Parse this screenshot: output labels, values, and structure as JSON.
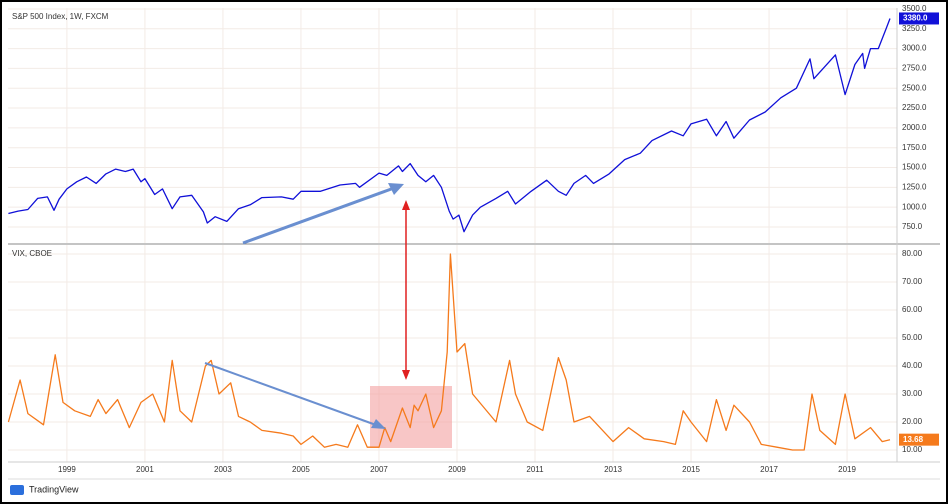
{
  "chart_data": [
    {
      "type": "line",
      "title": "S&P 500 Index, 1W, FXCM",
      "color": "#1010d8",
      "x": [
        1997.5,
        1997.75,
        1998.0,
        1998.25,
        1998.5,
        1998.67,
        1998.8,
        1999.0,
        1999.25,
        1999.5,
        1999.75,
        2000.0,
        2000.25,
        2000.5,
        2000.7,
        2000.9,
        2001.0,
        2001.25,
        2001.45,
        2001.7,
        2001.9,
        2002.2,
        2002.5,
        2002.6,
        2002.8,
        2003.1,
        2003.4,
        2003.7,
        2004.0,
        2004.5,
        2004.8,
        2005.0,
        2005.5,
        2006.0,
        2006.4,
        2006.5,
        2007.0,
        2007.2,
        2007.5,
        2007.6,
        2007.8,
        2008.0,
        2008.2,
        2008.4,
        2008.6,
        2008.8,
        2008.9,
        2009.05,
        2009.18,
        2009.4,
        2009.6,
        2010.0,
        2010.3,
        2010.5,
        2010.9,
        2011.3,
        2011.6,
        2011.8,
        2012.0,
        2012.3,
        2012.5,
        2012.9,
        2013.3,
        2013.7,
        2014.0,
        2014.5,
        2014.8,
        2015.0,
        2015.4,
        2015.65,
        2015.9,
        2016.1,
        2016.5,
        2016.9,
        2017.3,
        2017.7,
        2018.05,
        2018.15,
        2018.7,
        2018.95,
        2019.2,
        2019.4,
        2019.45,
        2019.6,
        2019.8,
        2020.0,
        2020.1
      ],
      "values": [
        920,
        950,
        970,
        1110,
        1130,
        960,
        1100,
        1230,
        1320,
        1380,
        1300,
        1420,
        1480,
        1450,
        1480,
        1320,
        1360,
        1160,
        1230,
        980,
        1130,
        1150,
        940,
        800,
        880,
        820,
        980,
        1030,
        1120,
        1130,
        1100,
        1200,
        1200,
        1280,
        1300,
        1250,
        1430,
        1400,
        1520,
        1450,
        1550,
        1400,
        1320,
        1400,
        1250,
        950,
        850,
        900,
        690,
        900,
        1000,
        1110,
        1200,
        1040,
        1200,
        1340,
        1200,
        1150,
        1300,
        1400,
        1300,
        1420,
        1600,
        1680,
        1840,
        1960,
        1900,
        2050,
        2110,
        1900,
        2080,
        1870,
        2100,
        2200,
        2380,
        2500,
        2870,
        2620,
        2920,
        2420,
        2800,
        2940,
        2750,
        3000,
        3000,
        3250,
        3380
      ],
      "last_price": {
        "value": 3380,
        "label": "3380.0"
      },
      "xlim": [
        1997.49,
        2020.28
      ],
      "xticks": [
        1999,
        2001,
        2003,
        2005,
        2007,
        2009,
        2011,
        2013,
        2015,
        2017,
        2019
      ],
      "ylim": [
        548,
        3512
      ],
      "yticks": [
        {
          "value": 750,
          "label": "750.0"
        },
        {
          "value": 1000,
          "label": "1000.0"
        },
        {
          "value": 1250,
          "label": "1250.0"
        },
        {
          "value": 1500,
          "label": "1500.0"
        },
        {
          "value": 1750,
          "label": "1750.0"
        },
        {
          "value": 2000,
          "label": "2000.0"
        },
        {
          "value": 2250,
          "label": "2250.0"
        },
        {
          "value": 2500,
          "label": "2500.0"
        },
        {
          "value": 2750,
          "label": "2750.0"
        },
        {
          "value": 3000,
          "label": "3000.0"
        },
        {
          "value": 3250,
          "label": "3250.0"
        },
        {
          "value": 3500,
          "label": "3500.0"
        }
      ],
      "grid": true
    },
    {
      "type": "line",
      "title": "VIX, CBOE",
      "color": "#f57a1c",
      "x": [
        1997.5,
        1997.8,
        1998.0,
        1998.4,
        1998.7,
        1998.9,
        1999.2,
        1999.6,
        1999.8,
        2000.0,
        2000.3,
        2000.6,
        2000.9,
        2001.2,
        2001.5,
        2001.7,
        2001.9,
        2002.2,
        2002.55,
        2002.7,
        2002.9,
        2003.2,
        2003.4,
        2003.7,
        2004.0,
        2004.5,
        2004.8,
        2005.0,
        2005.3,
        2005.6,
        2005.9,
        2006.2,
        2006.45,
        2006.7,
        2007.0,
        2007.15,
        2007.3,
        2007.6,
        2007.8,
        2007.9,
        2008.0,
        2008.2,
        2008.4,
        2008.6,
        2008.75,
        2008.83,
        2009.0,
        2009.2,
        2009.4,
        2009.7,
        2010.0,
        2010.35,
        2010.5,
        2010.8,
        2011.2,
        2011.6,
        2011.8,
        2012.0,
        2012.4,
        2012.8,
        2013.0,
        2013.4,
        2013.8,
        2014.3,
        2014.6,
        2014.8,
        2015.0,
        2015.4,
        2015.65,
        2015.9,
        2016.1,
        2016.5,
        2016.8,
        2017.2,
        2017.6,
        2017.9,
        2018.1,
        2018.3,
        2018.7,
        2018.95,
        2019.2,
        2019.6,
        2019.9,
        2020.1
      ],
      "values": [
        20,
        35,
        23,
        19,
        44,
        27,
        24,
        22,
        28,
        23,
        28,
        18,
        27,
        30,
        20,
        42,
        24,
        20,
        40,
        42,
        30,
        34,
        22,
        20,
        17,
        16,
        15,
        12,
        15,
        11,
        12,
        11,
        19,
        11,
        11,
        18,
        13,
        25,
        18,
        26,
        24,
        30,
        18,
        24,
        45,
        80,
        45,
        48,
        30,
        25,
        20,
        42,
        30,
        20,
        17,
        43,
        35,
        20,
        22,
        16,
        13,
        18,
        14,
        13,
        12,
        24,
        20,
        13,
        28,
        17,
        26,
        20,
        12,
        11,
        10,
        10,
        30,
        17,
        12,
        30,
        14,
        18,
        13,
        13.68
      ],
      "last_price": 13.68,
      "xlim": [
        1997.49,
        2020.28
      ],
      "xticks": [
        1999,
        2001,
        2003,
        2005,
        2007,
        2009,
        2011,
        2013,
        2015,
        2017,
        2019
      ],
      "ylim": [
        5.7,
        83.2
      ],
      "yticks": [
        {
          "value": 10,
          "label": "10.00"
        },
        {
          "value": 20,
          "label": "20.00"
        },
        {
          "value": 30,
          "label": "30.00"
        },
        {
          "value": 40,
          "label": "40.00"
        },
        {
          "value": 50,
          "label": "50.00"
        },
        {
          "value": 60,
          "label": "60.00"
        },
        {
          "value": 70,
          "label": "70.00"
        },
        {
          "value": 80,
          "label": "80.00"
        }
      ],
      "grid": true
    }
  ],
  "footer": "TradingView"
}
